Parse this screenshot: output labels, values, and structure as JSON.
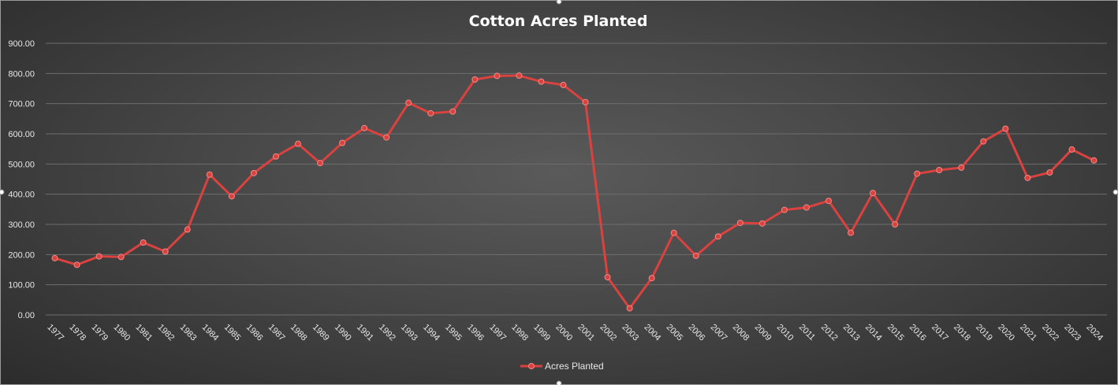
{
  "chart_data": {
    "type": "line",
    "title": "Cotton Acres Planted",
    "xlabel": "",
    "ylabel": "",
    "ylim": [
      0,
      900
    ],
    "ytick_step": 100,
    "ytick_labels": [
      "0.00",
      "100.00",
      "200.00",
      "300.00",
      "400.00",
      "500.00",
      "600.00",
      "700.00",
      "800.00",
      "900.00"
    ],
    "grid": true,
    "legend_position": "bottom",
    "series_color": "#d9423f",
    "categories": [
      "1977",
      "1978",
      "1979",
      "1980",
      "1981",
      "1982",
      "1983",
      "1984",
      "1985",
      "1986",
      "1987",
      "1988",
      "1989",
      "1990",
      "1991",
      "1992",
      "1993",
      "1994",
      "1995",
      "1996",
      "1997",
      "1998",
      "1999",
      "2000",
      "2001",
      "2002",
      "2003",
      "2004",
      "2005",
      "2006",
      "2007",
      "2008",
      "2009",
      "2010",
      "2011",
      "2012",
      "2013",
      "2014",
      "2015",
      "2016",
      "2017",
      "2018",
      "2019",
      "2020",
      "2021",
      "2022",
      "2023",
      "2024"
    ],
    "series": [
      {
        "name": "Acres Planted",
        "values": [
          188,
          166,
          194,
          192,
          240,
          210,
          283,
          465,
          393,
          470,
          525,
          567,
          503,
          570,
          619,
          588,
          703,
          668,
          674,
          780,
          792,
          793,
          773,
          762,
          705,
          125,
          22,
          122,
          272,
          196,
          260,
          305,
          303,
          348,
          356,
          378,
          272,
          404,
          300,
          468,
          480,
          488,
          575,
          617,
          454,
          472,
          548,
          512
        ]
      }
    ]
  }
}
